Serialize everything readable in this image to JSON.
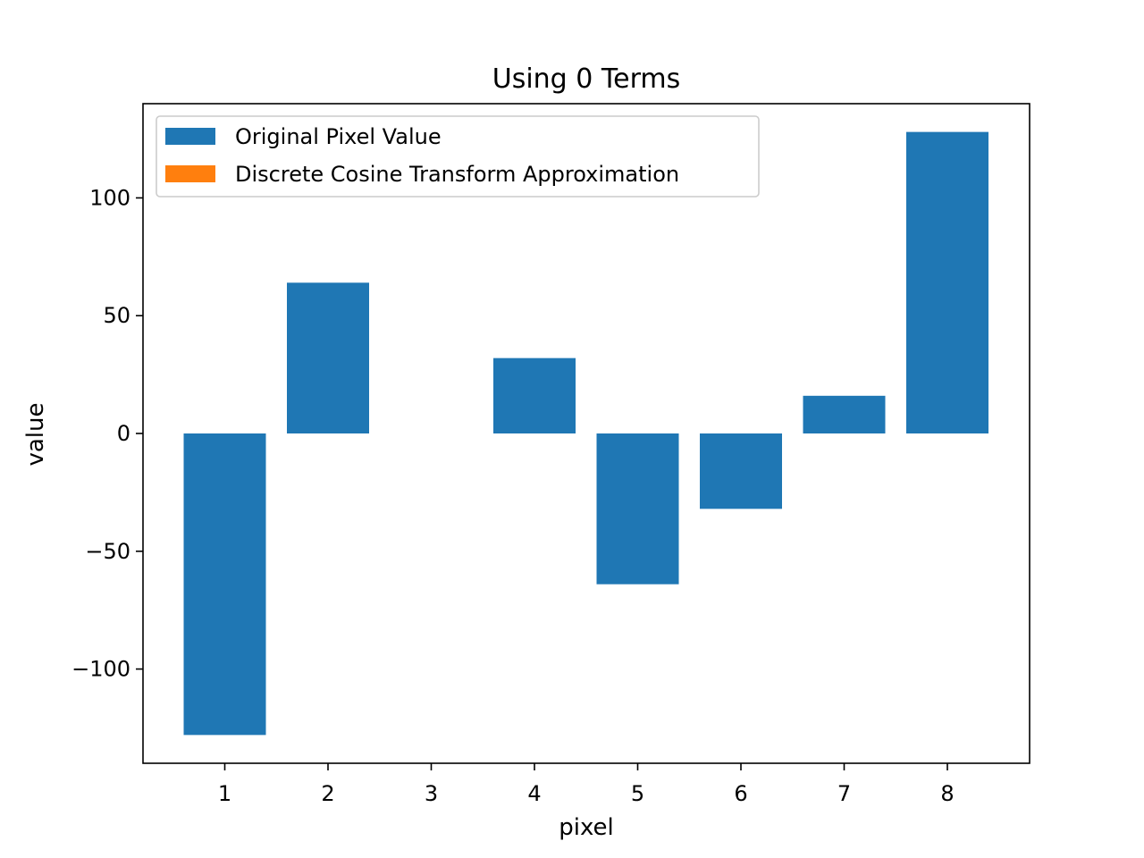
{
  "chart_data": {
    "type": "bar",
    "title": "Using 0 Terms",
    "xlabel": "pixel",
    "ylabel": "value",
    "categories": [
      "1",
      "2",
      "3",
      "4",
      "5",
      "6",
      "7",
      "8"
    ],
    "x_ticks": [
      "1",
      "2",
      "3",
      "4",
      "5",
      "6",
      "7",
      "8"
    ],
    "y_ticks": [
      -100,
      -50,
      0,
      50,
      100
    ],
    "y_tick_labels": [
      "−100",
      "−50",
      "0",
      "50",
      "100"
    ],
    "ylim": [
      -140,
      140
    ],
    "grid": false,
    "legend_position": "top-left",
    "series": [
      {
        "name": "Original Pixel Value",
        "color": "#1f77b4",
        "values": [
          -128,
          64,
          0,
          32,
          -64,
          -32,
          16,
          128
        ]
      },
      {
        "name": "Discrete Cosine Transform Approximation",
        "color": "#ff7f0e",
        "values": [
          0,
          0,
          0,
          0,
          0,
          0,
          0,
          0
        ]
      }
    ]
  }
}
